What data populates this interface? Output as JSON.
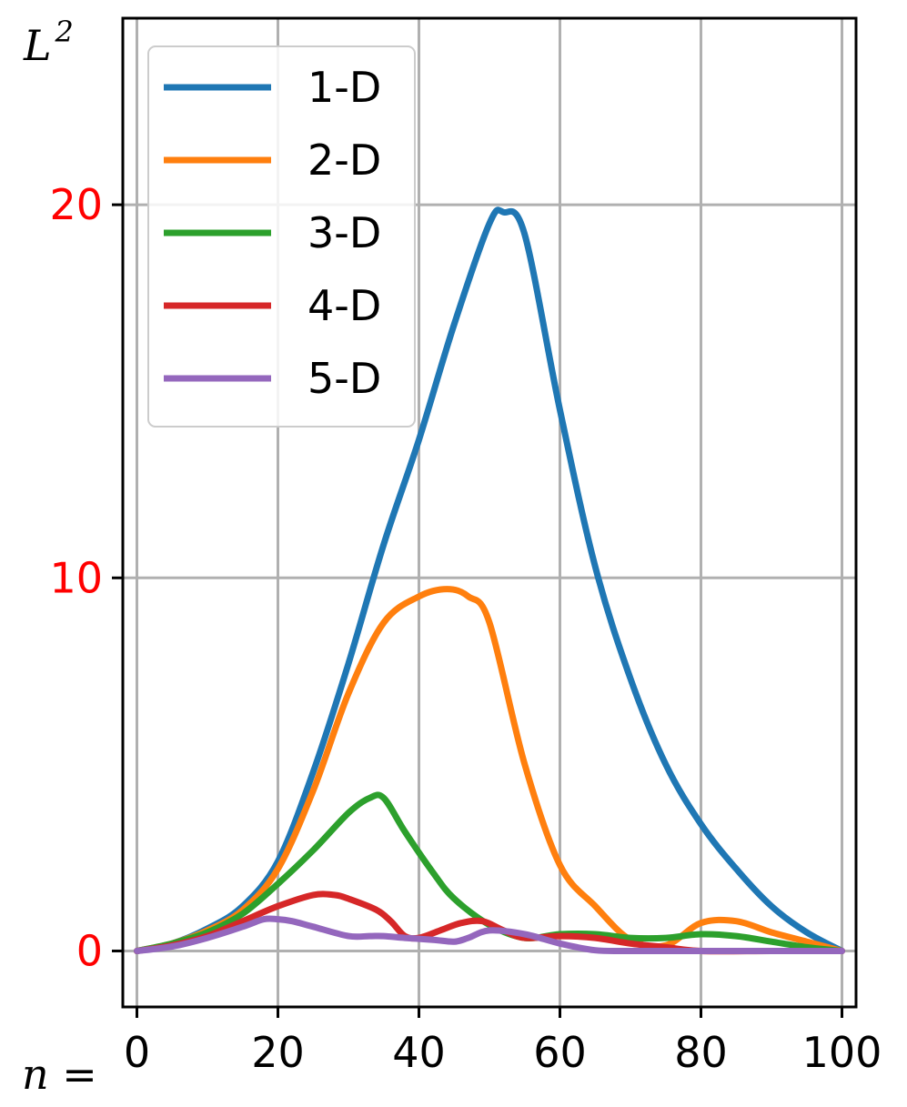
{
  "chart_data": {
    "type": "line",
    "ylabel": "L",
    "ylabel_superscript": "2",
    "xlabel": "n =",
    "xlim": [
      -2,
      102
    ],
    "ylim": [
      -1.5,
      25
    ],
    "xticks": [
      0,
      20,
      40,
      60,
      80,
      100
    ],
    "xtick_labels": [
      "0",
      "20",
      "40",
      "60",
      "80",
      "100"
    ],
    "yticks": [
      0,
      10,
      20
    ],
    "ytick_labels": [
      "0",
      "10",
      "20"
    ],
    "ytick_color": "#ff0000",
    "grid": true,
    "legend_position": "top-left",
    "series": [
      {
        "name": "1-D",
        "color": "#1f77b4",
        "x": [
          0,
          5,
          10,
          15,
          20,
          25,
          30,
          35,
          40,
          45,
          50,
          52,
          55,
          60,
          65,
          70,
          75,
          80,
          85,
          90,
          95,
          100
        ],
        "y": [
          0,
          0.2,
          0.6,
          1.2,
          2.4,
          4.8,
          7.7,
          10.9,
          13.7,
          16.8,
          19.5,
          19.8,
          19.2,
          14.5,
          10.3,
          7.3,
          5.0,
          3.4,
          2.2,
          1.2,
          0.5,
          0
        ]
      },
      {
        "name": "2-D",
        "color": "#ff7f0e",
        "x": [
          0,
          5,
          10,
          15,
          20,
          25,
          30,
          35,
          40,
          44,
          47,
          50,
          55,
          60,
          65,
          70,
          75,
          80,
          85,
          90,
          95,
          100
        ],
        "y": [
          0,
          0.2,
          0.55,
          1.1,
          2.2,
          4.3,
          6.9,
          8.8,
          9.5,
          9.7,
          9.5,
          8.8,
          5.0,
          2.3,
          1.2,
          0.3,
          0.15,
          0.75,
          0.8,
          0.5,
          0.25,
          0
        ]
      },
      {
        "name": "3-D",
        "color": "#2ca02c",
        "x": [
          0,
          5,
          10,
          15,
          20,
          25,
          30,
          33,
          35,
          38,
          42,
          45,
          50,
          55,
          60,
          65,
          70,
          75,
          80,
          85,
          90,
          95,
          100
        ],
        "y": [
          0,
          0.2,
          0.5,
          1.0,
          1.8,
          2.7,
          3.7,
          4.1,
          4.1,
          3.2,
          2.1,
          1.4,
          0.7,
          0.35,
          0.45,
          0.45,
          0.35,
          0.35,
          0.45,
          0.4,
          0.25,
          0.1,
          0
        ]
      },
      {
        "name": "4-D",
        "color": "#d62728",
        "x": [
          0,
          5,
          10,
          15,
          20,
          25,
          28,
          30,
          34,
          36,
          38,
          40,
          43,
          46,
          49,
          52,
          55,
          60,
          65,
          70,
          75,
          80,
          90,
          100
        ],
        "y": [
          0,
          0.15,
          0.4,
          0.8,
          1.2,
          1.5,
          1.5,
          1.4,
          1.1,
          0.8,
          0.4,
          0.35,
          0.55,
          0.75,
          0.8,
          0.55,
          0.35,
          0.4,
          0.35,
          0.2,
          0.1,
          0,
          0,
          0
        ]
      },
      {
        "name": "5-D",
        "color": "#9467bd",
        "x": [
          0,
          5,
          10,
          15,
          18,
          20,
          22,
          25,
          30,
          33,
          35,
          38,
          42,
          45,
          47,
          50,
          55,
          60,
          65,
          70,
          80,
          90,
          100
        ],
        "y": [
          0,
          0.12,
          0.35,
          0.65,
          0.85,
          0.85,
          0.8,
          0.65,
          0.4,
          0.4,
          0.4,
          0.35,
          0.3,
          0.25,
          0.35,
          0.55,
          0.45,
          0.2,
          0.02,
          0,
          0,
          0,
          0
        ]
      }
    ]
  }
}
